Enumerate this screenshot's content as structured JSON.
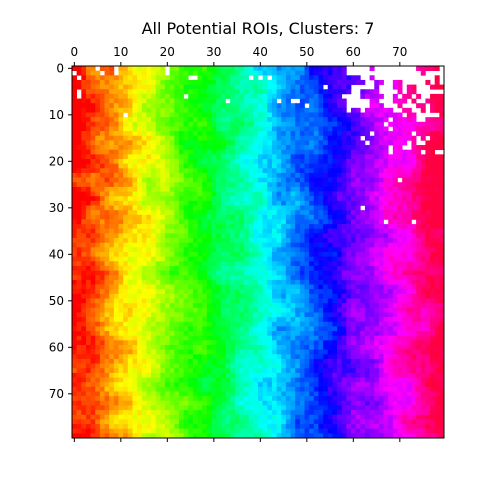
{
  "chart_data": {
    "type": "heatmap",
    "title": "All Potential ROIs, Clusters: 7",
    "xlabel": "",
    "ylabel": "",
    "grid_size": [
      80,
      80
    ],
    "x_ticks": [
      0,
      10,
      20,
      30,
      40,
      50,
      60,
      70
    ],
    "y_ticks": [
      0,
      10,
      20,
      30,
      40,
      50,
      60,
      70
    ],
    "x_tick_position": "top",
    "xlim": [
      -0.5,
      79.5
    ],
    "ylim": [
      79.5,
      -0.5
    ],
    "colormap": "hsv",
    "color_direction": "left-to-right",
    "hue_range_deg": [
      0,
      345
    ],
    "background": "#ffffff",
    "grid": false,
    "legend": "none"
  }
}
